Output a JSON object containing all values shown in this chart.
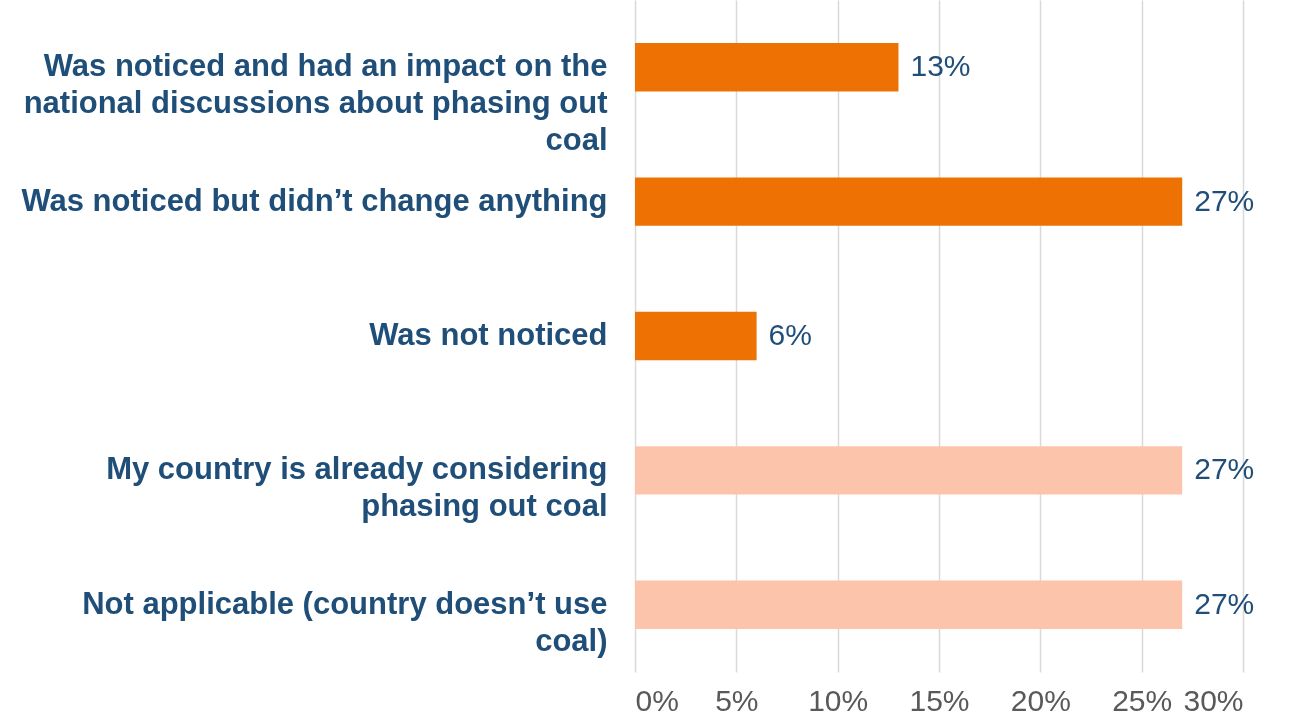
{
  "chart_data": {
    "type": "bar",
    "orientation": "horizontal",
    "categories": [
      "Was noticed and had an impact on the national discussions about phasing out coal",
      "Was noticed but didn’t change anything",
      "Was not noticed",
      "My country is already considering phasing out coal",
      "Not applicable (country doesn’t use coal)"
    ],
    "values": [
      13,
      27,
      6,
      27,
      27
    ],
    "colors": [
      "#ed7203",
      "#ed7203",
      "#ed7203",
      "#fdc4ac",
      "#fdc4ac"
    ],
    "value_labels": [
      "13%",
      "27%",
      "6%",
      "27%",
      "27%"
    ],
    "xlim": [
      0,
      30
    ],
    "xticks": [
      {
        "value": 0,
        "label": "0%"
      },
      {
        "value": 5,
        "label": "5%"
      },
      {
        "value": 10,
        "label": "10%"
      },
      {
        "value": 15,
        "label": "15%"
      },
      {
        "value": 20,
        "label": "20%"
      },
      {
        "value": 25,
        "label": "25%"
      },
      {
        "value": 30,
        "label": "30%"
      }
    ],
    "grid": "x"
  }
}
